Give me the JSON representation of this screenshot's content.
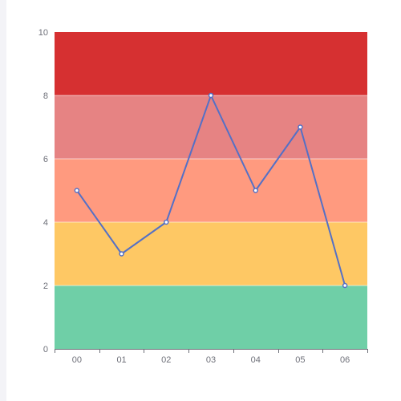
{
  "chart_data": {
    "type": "line",
    "categories": [
      "00",
      "01",
      "02",
      "03",
      "04",
      "05",
      "06"
    ],
    "series": [
      {
        "values": [
          5,
          3,
          4,
          8,
          5,
          7,
          2
        ],
        "color": "#5470c6"
      }
    ],
    "ylim": [
      0,
      10
    ],
    "yticks": [
      0,
      2,
      4,
      6,
      8,
      10
    ],
    "ytick_labels": [
      "0",
      "2",
      "4",
      "6",
      "8",
      "10"
    ],
    "bands": [
      {
        "from": 0,
        "to": 2,
        "color": "#6fcfa7"
      },
      {
        "from": 2,
        "to": 4,
        "color": "#fec864"
      },
      {
        "from": 4,
        "to": 6,
        "color": "#ff9a7f"
      },
      {
        "from": 6,
        "to": 8,
        "color": "#e68383"
      },
      {
        "from": 8,
        "to": 10,
        "color": "#d63031"
      }
    ],
    "title": "",
    "xlabel": "",
    "ylabel": "",
    "grid": false,
    "legend": "none"
  }
}
